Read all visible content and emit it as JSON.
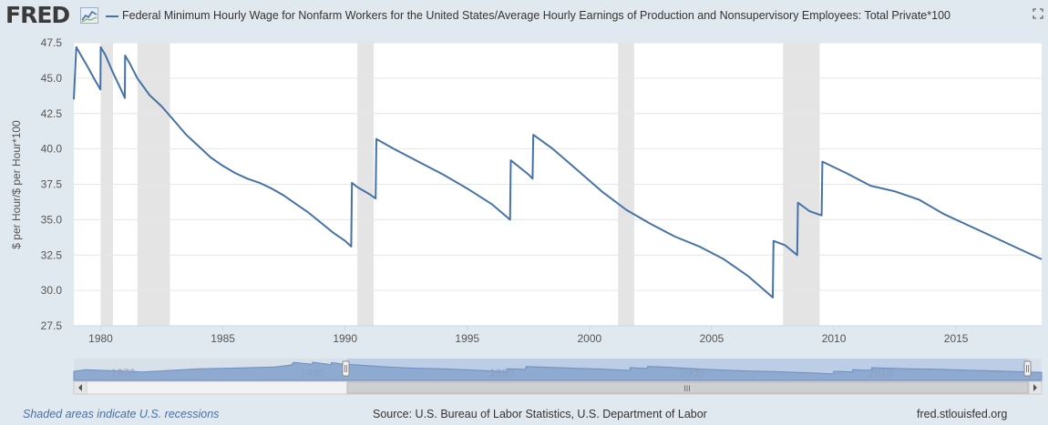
{
  "header": {
    "logo_text": "FRED",
    "legend_label": "Federal Minimum Hourly Wage for Nonfarm Workers for the United States/Average Hourly Earnings of Production and Nonsupervisory Employees: Total Private*100"
  },
  "colors": {
    "series": "#4572a7",
    "recession": "#e4e4e4",
    "navigator_fill": "#8eaad0",
    "navigator_selection": "#bccde6"
  },
  "chart_data": {
    "type": "line",
    "title": "Federal Minimum Hourly Wage for Nonfarm Workers for the United States/Average Hourly Earnings of Production and Nonsupervisory Employees: Total Private*100",
    "xlabel": "",
    "ylabel": "$ per Hour/$ per Hour*100",
    "xlim": [
      1978.9,
      2018.5
    ],
    "ylim": [
      27.5,
      47.5
    ],
    "yticks": [
      "27.5",
      "30.0",
      "32.5",
      "35.0",
      "37.5",
      "40.0",
      "42.5",
      "45.0",
      "47.5"
    ],
    "xticks": [
      "1980",
      "1985",
      "1990",
      "1995",
      "2000",
      "2005",
      "2010",
      "2015"
    ],
    "grid": true,
    "recessions": [
      [
        1980.0,
        1980.5
      ],
      [
        1981.5,
        1982.83
      ],
      [
        1990.5,
        1991.17
      ],
      [
        2001.17,
        2001.83
      ],
      [
        2007.92,
        2009.42
      ]
    ],
    "series": [
      {
        "name": "Federal Minimum Hourly Wage / Average Hourly Earnings *100",
        "segments": [
          {
            "x": [
              1978.9,
              1979.0,
              1979.2,
              1979.5,
              1979.75,
              1979.99
            ],
            "y": [
              43.5,
              47.2,
              46.6,
              45.7,
              44.9,
              44.2
            ]
          },
          {
            "x": [
              1980.0,
              1980.2,
              1980.5,
              1980.75,
              1980.99
            ],
            "y": [
              47.2,
              46.6,
              45.4,
              44.5,
              43.6
            ]
          },
          {
            "x": [
              1981.0,
              1981.2,
              1981.5,
              1982.0,
              1982.5,
              1983.0,
              1983.5,
              1984.0,
              1984.5,
              1985.0,
              1985.5,
              1986.0,
              1986.5,
              1987.0,
              1987.5,
              1988.0,
              1988.5,
              1989.0,
              1989.5,
              1990.0,
              1990.25
            ],
            "y": [
              46.6,
              46.0,
              45.0,
              43.8,
              43.0,
              42.0,
              41.0,
              40.2,
              39.4,
              38.8,
              38.3,
              37.9,
              37.6,
              37.2,
              36.7,
              36.1,
              35.5,
              34.8,
              34.1,
              33.5,
              33.1
            ]
          },
          {
            "x": [
              1990.28,
              1990.5,
              1991.0,
              1991.25
            ],
            "y": [
              37.6,
              37.3,
              36.8,
              36.5
            ]
          },
          {
            "x": [
              1991.28,
              1992.0,
              1993.0,
              1994.0,
              1995.0,
              1996.0,
              1996.75
            ],
            "y": [
              40.7,
              40.0,
              39.1,
              38.2,
              37.2,
              36.1,
              35.0
            ]
          },
          {
            "x": [
              1996.78,
              1997.5,
              1997.67
            ],
            "y": [
              39.2,
              38.2,
              37.9
            ]
          },
          {
            "x": [
              1997.7,
              1998.5,
              1999.5,
              2000.5,
              2001.5,
              2002.5,
              2003.5,
              2004.5,
              2005.5,
              2006.5,
              2007.5
            ],
            "y": [
              41.0,
              40.0,
              38.5,
              37.0,
              35.7,
              34.7,
              33.8,
              33.1,
              32.2,
              31.0,
              29.5
            ]
          },
          {
            "x": [
              2007.53,
              2008.0,
              2008.5
            ],
            "y": [
              33.5,
              33.2,
              32.5
            ]
          },
          {
            "x": [
              2008.53,
              2009.0,
              2009.5
            ],
            "y": [
              36.2,
              35.6,
              35.3
            ]
          },
          {
            "x": [
              2009.53,
              2010.5,
              2011.5,
              2012.5,
              2013.5,
              2014.5,
              2015.5,
              2016.5,
              2017.5,
              2018.5
            ],
            "y": [
              39.1,
              38.3,
              37.4,
              37.0,
              36.4,
              35.4,
              34.6,
              33.8,
              33.0,
              32.2
            ]
          }
        ]
      }
    ]
  },
  "navigator": {
    "labels": [
      "1970",
      "1980",
      "1990",
      "2000",
      "2010"
    ],
    "selected_range": [
      1978.9,
      2018.5
    ],
    "grip_label": "III"
  },
  "footer": {
    "recession_note": "Shaded areas indicate U.S. recessions",
    "source": "Source: U.S. Bureau of Labor Statistics, U.S. Department of Labor",
    "site": "fred.stlouisfed.org"
  }
}
